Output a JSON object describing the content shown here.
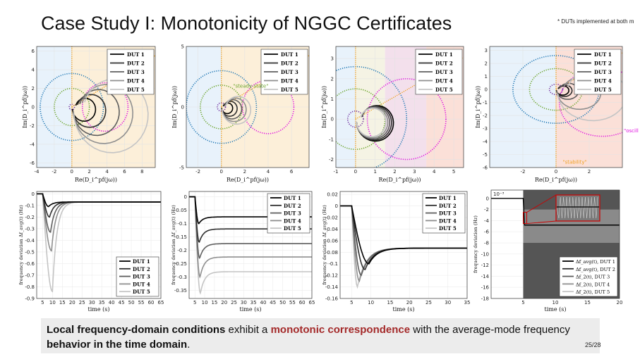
{
  "title": "Case Study I: Monotonicity of NGGC Certificates",
  "footnote": "* DUTs implemented at both m",
  "page": "25/28",
  "summary": {
    "part1": "Local frequency-domain conditions",
    "part2": " exhibit a ",
    "part3": "monotonic correspondence",
    "part4": " with the average-mode frequency ",
    "part5": "behavior in the time domain",
    "part6": "."
  },
  "colors": {
    "accent_red": "#a42a2a",
    "dut": [
      "#000000",
      "#2f2f2f",
      "#5f5f5f",
      "#8f8f8f",
      "#c4c4c4"
    ],
    "circle_blue": "#1f77b4",
    "circle_green": "#6aa329",
    "circle_magenta": "#e010e0",
    "circle_purple": "#7030a0",
    "orange": "#f0a020"
  },
  "annotations": {
    "steady_state": "\"steady-state\"",
    "oscill": "\"oscill",
    "stability": "\"stability\""
  },
  "chart_data": [
    {
      "type": "line",
      "title": "",
      "xlabel": "Re(D_i^pf(jω))",
      "ylabel": "Im(D_i^pf(jω))",
      "xlim": [
        -4,
        9.5
      ],
      "ylim": [
        -6.5,
        6.5
      ],
      "xticks": [
        "-4",
        "-2",
        "0",
        "2",
        "4",
        "6",
        "8"
      ],
      "yticks": [
        "6",
        "4",
        "2",
        "0",
        "-2",
        "-4",
        "-6"
      ],
      "legend": [
        "DUT 1",
        "DUT 2",
        "DUT 3",
        "DUT 4",
        "DUT 5"
      ],
      "legend_position": "top-right",
      "series": [
        {
          "name": "DUT 1",
          "radius": 1.4
        },
        {
          "name": "DUT 2",
          "radius": 2.0
        },
        {
          "name": "DUT 3",
          "radius": 2.8
        },
        {
          "name": "DUT 4",
          "radius": 3.6
        },
        {
          "name": "DUT 5",
          "radius": 4.5
        }
      ]
    },
    {
      "type": "line",
      "xlabel": "Re(D_i^pf(jω))",
      "ylabel": "Im(D_i^pf(jω))",
      "xlim": [
        -3,
        7.5
      ],
      "ylim": [
        -5,
        5
      ],
      "xticks": [
        "-2",
        "0",
        "2",
        "4",
        "6"
      ],
      "yticks": [
        "5",
        "0",
        "-5"
      ],
      "legend": [
        "DUT 1",
        "DUT 2",
        "DUT 3",
        "DUT 4",
        "DUT 5"
      ],
      "legend_position": "top-right",
      "series": [
        {
          "name": "DUT 1",
          "radius": 0.5
        },
        {
          "name": "DUT 2",
          "radius": 0.7
        },
        {
          "name": "DUT 3",
          "radius": 0.9
        },
        {
          "name": "DUT 4",
          "radius": 1.1
        },
        {
          "name": "DUT 5",
          "radius": 1.3
        }
      ]
    },
    {
      "type": "line",
      "xlabel": "Re(D_i^pf(jω))",
      "ylabel": "Im(D_i^pf(jω))",
      "xlim": [
        -1,
        5.5
      ],
      "ylim": [
        -2.4,
        3.6
      ],
      "xticks": [
        "-1",
        "0",
        "1",
        "2",
        "3",
        "4",
        "5"
      ],
      "yticks": [
        "3",
        "2",
        "1",
        "0",
        "-1",
        "-2"
      ],
      "legend": [
        "DUT 1",
        "DUT 2",
        "DUT 3",
        "DUT 4",
        "DUT 5"
      ],
      "legend_position": "top-right",
      "series": [
        {
          "name": "DUT 1",
          "radius": 1.0
        },
        {
          "name": "DUT 2",
          "radius": 0.95
        },
        {
          "name": "DUT 3",
          "radius": 0.9
        },
        {
          "name": "DUT 4",
          "radius": 0.85
        },
        {
          "name": "DUT 5",
          "radius": 0.8
        }
      ]
    },
    {
      "type": "line",
      "xlabel": "Re(D_i^pf(jω))",
      "ylabel": "Im(D_i^pf(jω))",
      "xlim": [
        -4,
        4
      ],
      "ylim": [
        -6,
        3.3
      ],
      "xticks": [
        "-2",
        "0",
        "2"
      ],
      "yticks": [
        "3",
        "2",
        "1",
        "0",
        "-1",
        "-2",
        "-3",
        "-4",
        "-5",
        "-6"
      ],
      "legend": [
        "DUT 1",
        "DUT 2",
        "DUT 3",
        "DUT 4",
        "DUT 5"
      ],
      "legend_position": "top-right",
      "series": [
        {
          "name": "DUT 1",
          "radius": 0.4
        },
        {
          "name": "DUT 2",
          "radius": 0.5
        },
        {
          "name": "DUT 3",
          "radius": 0.7
        },
        {
          "name": "DUT 4",
          "radius": 1.4
        },
        {
          "name": "DUT 5",
          "radius": 2.2
        }
      ]
    },
    {
      "type": "line",
      "xlabel": "time (s)",
      "ylabel": "frequency deviation Δf_avg(t) (Hz)",
      "xlim": [
        2,
        65
      ],
      "ylim": [
        -0.9,
        0.02
      ],
      "xticks": [
        "5",
        "10",
        "15",
        "20",
        "25",
        "30",
        "35",
        "40",
        "45",
        "50",
        "55",
        "60",
        "65"
      ],
      "yticks": [
        "0",
        "-0.1",
        "-0.2",
        "-0.3",
        "-0.4",
        "-0.5",
        "-0.6",
        "-0.7",
        "-0.8",
        "-0.9"
      ],
      "legend": [
        "DUT 1",
        "DUT 2",
        "DUT 3",
        "DUT 4",
        "DUT 5"
      ],
      "legend_position": "bottom-right",
      "series": [
        {
          "name": "DUT 1",
          "step": 5,
          "nadir": -0.11,
          "t_nadir": 8,
          "final": -0.07
        },
        {
          "name": "DUT 2",
          "step": 5,
          "nadir": -0.2,
          "t_nadir": 8.5,
          "final": -0.07
        },
        {
          "name": "DUT 3",
          "step": 5,
          "nadir": -0.33,
          "t_nadir": 9,
          "final": -0.07
        },
        {
          "name": "DUT 4",
          "step": 5,
          "nadir": -0.49,
          "t_nadir": 9.5,
          "final": -0.07
        },
        {
          "name": "DUT 5",
          "step": 5,
          "nadir": -0.84,
          "t_nadir": 10,
          "final": -0.07
        }
      ]
    },
    {
      "type": "line",
      "xlabel": "time (s)",
      "ylabel": "frequency deviation Δf_avg(t) (Hz)",
      "xlim": [
        2,
        65
      ],
      "ylim": [
        -0.38,
        0.02
      ],
      "xticks": [
        "5",
        "10",
        "15",
        "20",
        "25",
        "30",
        "35",
        "40",
        "45",
        "50",
        "55",
        "60",
        "65"
      ],
      "yticks": [
        "0",
        "-0.05",
        "-0.1",
        "-0.15",
        "-0.2",
        "-0.25",
        "-0.3",
        "-0.35"
      ],
      "legend": [
        "DUT 1",
        "DUT 2",
        "DUT 3",
        "DUT 4",
        "DUT 5"
      ],
      "legend_position": "top-right",
      "series": [
        {
          "name": "DUT 1",
          "step": 5,
          "nadir": -0.1,
          "t_nadir": 7,
          "final": -0.075
        },
        {
          "name": "DUT 2",
          "step": 5,
          "nadir": -0.17,
          "t_nadir": 7.2,
          "final": -0.12
        },
        {
          "name": "DUT 3",
          "step": 5,
          "nadir": -0.23,
          "t_nadir": 7.4,
          "final": -0.175
        },
        {
          "name": "DUT 4",
          "step": 5,
          "nadir": -0.3,
          "t_nadir": 7.6,
          "final": -0.225
        },
        {
          "name": "DUT 5",
          "step": 5,
          "nadir": -0.36,
          "t_nadir": 7.8,
          "final": -0.28
        }
      ]
    },
    {
      "type": "line",
      "xlabel": "time (s)",
      "ylabel": "frequency deviation Δf_avg(t) (Hz)",
      "xlim": [
        2,
        35
      ],
      "ylim": [
        -0.16,
        0.025
      ],
      "xticks": [
        "5",
        "10",
        "15",
        "20",
        "25",
        "30",
        "35"
      ],
      "yticks": [
        "0.02",
        "0",
        "-0.02",
        "-0.04",
        "-0.06",
        "-0.08",
        "-0.1",
        "-0.12",
        "-0.14",
        "-0.16"
      ],
      "legend": [
        "DUT 1",
        "DUT 2",
        "DUT 3",
        "DUT 4",
        "DUT 5"
      ],
      "legend_position": "top-right",
      "series": [
        {
          "name": "DUT 1",
          "step": 5,
          "nadir": -0.1,
          "t_nadir": 9.5,
          "final": -0.073
        },
        {
          "name": "DUT 2",
          "step": 5,
          "nadir": -0.11,
          "t_nadir": 8.5,
          "final": -0.073
        },
        {
          "name": "DUT 3",
          "step": 5,
          "nadir": -0.12,
          "t_nadir": 7.5,
          "final": -0.073
        },
        {
          "name": "DUT 4",
          "step": 5,
          "nadir": -0.13,
          "t_nadir": 7,
          "final": -0.073
        },
        {
          "name": "DUT 5",
          "step": 5,
          "nadir": -0.14,
          "t_nadir": 6.5,
          "final": -0.073
        }
      ]
    },
    {
      "type": "line",
      "xlabel": "time (s)",
      "ylabel": "frequency deviation (Hz)",
      "exponent": "10⁻³",
      "xlim": [
        0,
        20
      ],
      "ylim": [
        -18,
        1.5
      ],
      "xticks": [
        "5",
        "10",
        "15",
        "20"
      ],
      "yticks": [
        "0",
        "-2",
        "-4",
        "-6",
        "-8",
        "-10",
        "-12",
        "-14",
        "-16",
        "-18"
      ],
      "legend": [
        "Δf_avg(t), DUT 1",
        "Δf_avg(t), DUT 2",
        "Δf_2(t), DUT 3",
        "Δf_2(t), DUT 4",
        "Δf_2(t), DUT 5"
      ],
      "legend_position": "bottom-right",
      "series": [
        {
          "name": "Δf_avg(t), DUT 1",
          "final": -4.8
        },
        {
          "name": "Δf_2(t), DUT 5",
          "band": [
            -18,
            1.5
          ]
        }
      ]
    }
  ]
}
